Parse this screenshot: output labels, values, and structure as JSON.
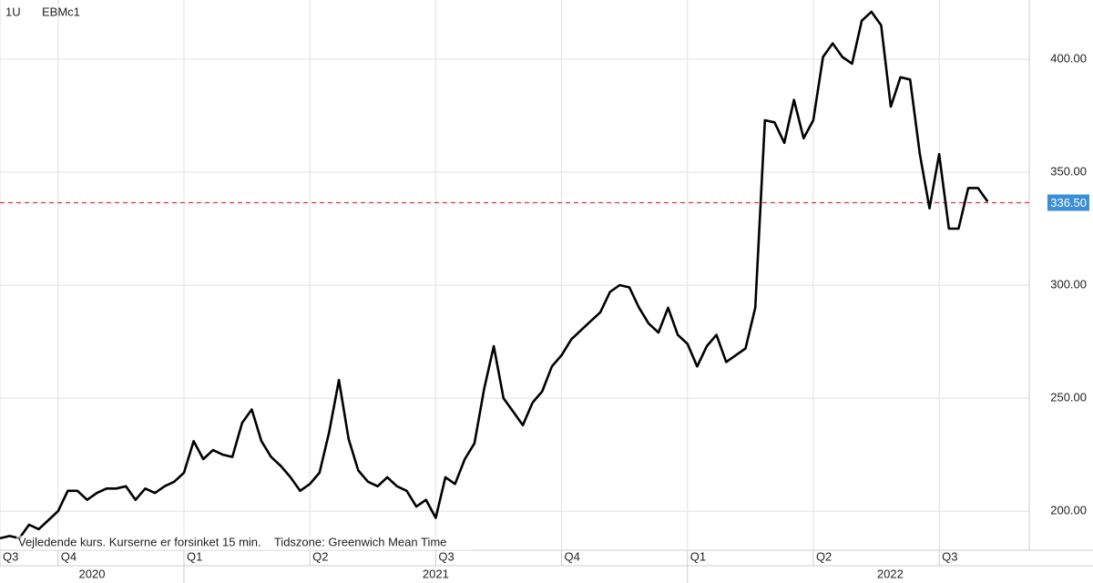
{
  "chart_data": {
    "type": "line",
    "interval": "1U",
    "symbol": "EBMc1",
    "note": "Vejledende kurs. Kurserne er forsinket 15 min.    Tidszone: Greenwich Mean Time",
    "color": "#000000",
    "grid": true,
    "categories": [
      "Q3",
      null,
      null,
      null,
      null,
      null,
      "Q4",
      null,
      null,
      null,
      null,
      null,
      null,
      null,
      null,
      null,
      null,
      null,
      null,
      "Q1",
      null,
      null,
      null,
      null,
      null,
      null,
      null,
      null,
      null,
      null,
      null,
      null,
      "Q2",
      null,
      null,
      null,
      null,
      null,
      null,
      null,
      null,
      null,
      null,
      null,
      null,
      "Q3",
      null,
      null,
      null,
      null,
      null,
      null,
      null,
      null,
      null,
      null,
      null,
      null,
      "Q4",
      null,
      null,
      null,
      null,
      null,
      null,
      null,
      null,
      null,
      null,
      null,
      null,
      "Q1",
      null,
      null,
      null,
      null,
      null,
      null,
      null,
      null,
      null,
      null,
      null,
      null,
      "Q2",
      null,
      null,
      null,
      null,
      null,
      null,
      null,
      null,
      null,
      null,
      null,
      null,
      "Q3",
      null,
      null,
      null,
      null,
      null
    ],
    "values": [
      188,
      189,
      188,
      194,
      192,
      196,
      200,
      209,
      209,
      205,
      208,
      210,
      210,
      211,
      205,
      210,
      208,
      211,
      213,
      217,
      231,
      223,
      227,
      225,
      224,
      239,
      245,
      231,
      224,
      220,
      215,
      209,
      212,
      217,
      235,
      258,
      232,
      218,
      213,
      211,
      215,
      211,
      209,
      202,
      205,
      197,
      215,
      212,
      223,
      230,
      254,
      273,
      250,
      244,
      238,
      248,
      253,
      264,
      269,
      276,
      280,
      284,
      288,
      297,
      300,
      299,
      290,
      283,
      279,
      290,
      278,
      274,
      264,
      273,
      278,
      266,
      269,
      272,
      290,
      373,
      372,
      363,
      382,
      365,
      373,
      401,
      407,
      401,
      398,
      417,
      421,
      415,
      379,
      392,
      391,
      358,
      334,
      358,
      325,
      325,
      343,
      343,
      337
    ],
    "years": [
      "2020",
      "2021",
      "2022"
    ],
    "ylim": [
      182.7,
      426.2
    ],
    "yticks": [
      {
        "value": 200,
        "label": "200.00"
      },
      {
        "value": 250,
        "label": "250.00"
      },
      {
        "value": 300,
        "label": "300.00"
      },
      {
        "value": 350,
        "label": "350.00"
      },
      {
        "value": 400,
        "label": "400.00"
      }
    ],
    "last_price": {
      "value": 336.5,
      "label": "336.50",
      "color": "#d9363e",
      "box_color": "#3b8fd4"
    }
  }
}
